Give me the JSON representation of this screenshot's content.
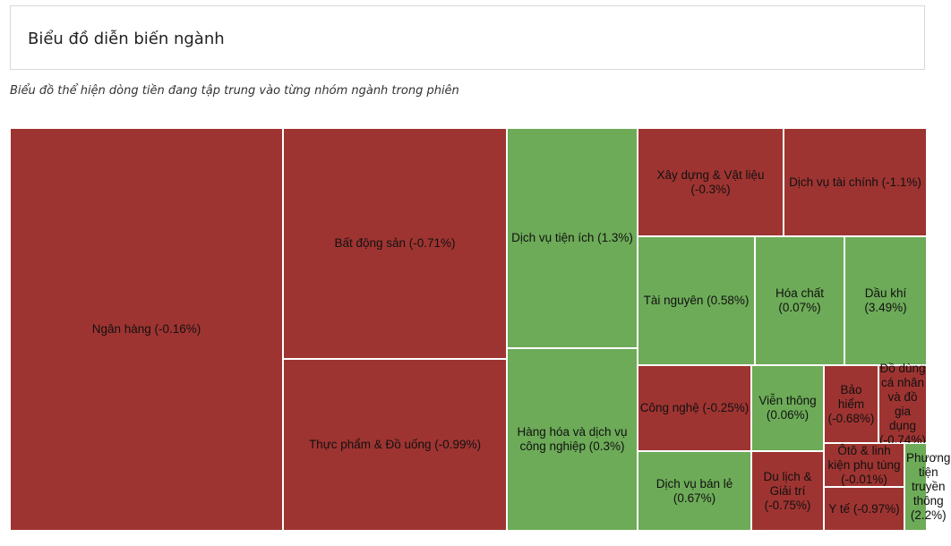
{
  "header": {
    "title": "Biểu đồ diễn biến ngành"
  },
  "subtitle": "Biểu đồ thể hiện dòng tiền đang tập trung vào từng nhóm ngành trong phiên",
  "colors": {
    "negative": "#9e3431",
    "positive": "#6dab58"
  },
  "chart_data": {
    "type": "treemap",
    "title": "Biểu đồ diễn biến ngành",
    "items": [
      {
        "name": "Ngân hàng",
        "change": -0.16,
        "label": "Ngân hàng (-0.16%)"
      },
      {
        "name": "Bất động sản",
        "change": -0.71,
        "label": "Bất động sản (-0.71%)"
      },
      {
        "name": "Thực phẩm & Đồ uống",
        "change": -0.99,
        "label": "Thực phẩm & Đồ uống (-0.99%)"
      },
      {
        "name": "Dịch vụ tiện ích",
        "change": 1.3,
        "label": "Dịch vụ tiện ích (1.3%)"
      },
      {
        "name": "Hàng hóa và dịch vụ công nghiệp",
        "change": 0.3,
        "label": "Hàng hóa và dịch vụ công nghiệp (0.3%)"
      },
      {
        "name": "Xây dựng & Vật liệu",
        "change": -0.3,
        "label": "Xây dựng & Vật liệu (-0.3%)"
      },
      {
        "name": "Dịch vụ tài chính",
        "change": -1.1,
        "label": "Dịch vụ tài chính (-1.1%)"
      },
      {
        "name": "Tài nguyên",
        "change": 0.58,
        "label": "Tài nguyên (0.58%)"
      },
      {
        "name": "Hóa chất",
        "change": 0.07,
        "label": "Hóa chất (0.07%)"
      },
      {
        "name": "Dầu khí",
        "change": 3.49,
        "label": "Dầu khí (3.49%)"
      },
      {
        "name": "Công nghệ",
        "change": -0.25,
        "label": "Công nghệ (-0.25%)"
      },
      {
        "name": "Viễn thông",
        "change": 0.06,
        "label": "Viễn thông (0.06%)"
      },
      {
        "name": "Bảo hiểm",
        "change": -0.68,
        "label": "Bảo hiểm (-0.68%)"
      },
      {
        "name": "Đồ dùng cá nhân và đồ gia dụng",
        "change": -0.74,
        "label": "Đồ dùng cá nhân và đồ gia dụng (-0.74%)"
      },
      {
        "name": "Dịch vụ bán lẻ",
        "change": 0.67,
        "label": "Dịch vụ bán lẻ (0.67%)"
      },
      {
        "name": "Du lịch & Giải trí",
        "change": -0.75,
        "label": "Du lịch & Giải trí (-0.75%)"
      },
      {
        "name": "Ôtô & linh kiện phụ tùng",
        "change": -0.01,
        "label": "Ôtô & linh kiện phụ tùng (-0.01%)"
      },
      {
        "name": "Y tế",
        "change": -0.97,
        "label": "Y tế (-0.97%)"
      },
      {
        "name": "Phương tiện truyền thông",
        "change": 2.2,
        "label": "Phương tiện truyền thông (2.2%)"
      }
    ]
  }
}
